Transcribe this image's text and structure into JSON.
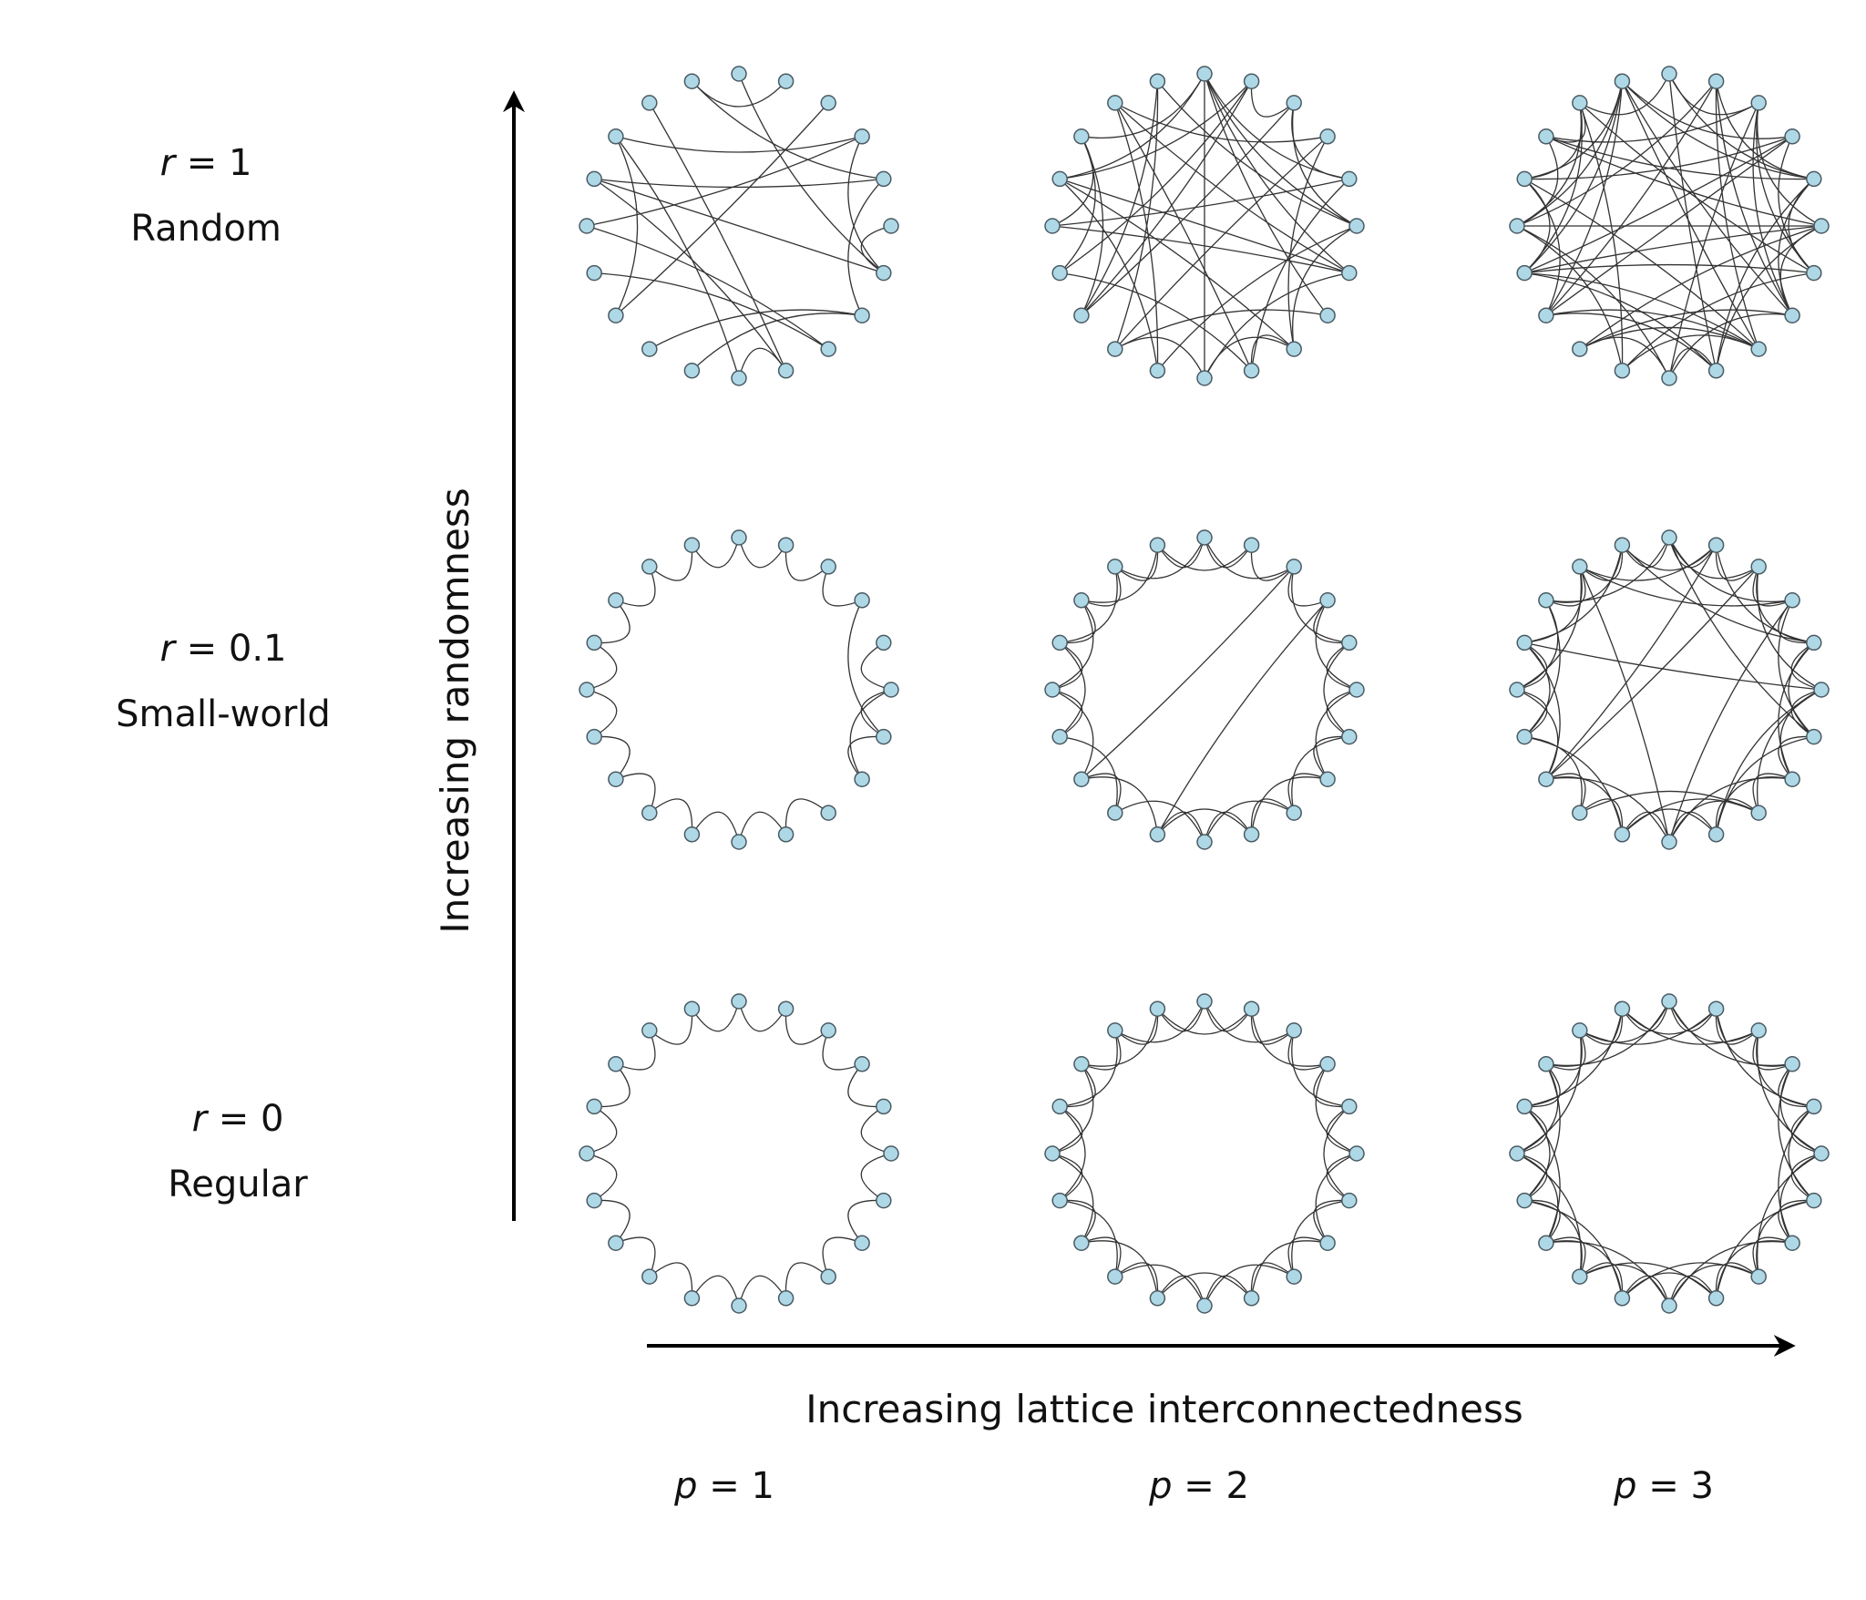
{
  "rows": [
    {
      "r_symbol": "r",
      "r_value": "1",
      "name": "Random",
      "rewire": 1.0
    },
    {
      "r_symbol": "r",
      "r_value": "0.1",
      "name": "Small-world",
      "rewire": 0.1
    },
    {
      "r_symbol": "r",
      "r_value": "0",
      "name": "Regular",
      "rewire": 0.0
    }
  ],
  "columns": [
    {
      "p_symbol": "p",
      "p_value": "1",
      "neighbors": 1
    },
    {
      "p_symbol": "p",
      "p_value": "2",
      "neighbors": 2
    },
    {
      "p_symbol": "p",
      "p_value": "3",
      "neighbors": 3
    }
  ],
  "graph": {
    "node_count": 20
  },
  "y_axis": {
    "label": "Increasing randomness"
  },
  "x_axis": {
    "label": "Increasing lattice interconnectedness"
  },
  "colors": {
    "node_fill": "#aed8e6",
    "node_stroke": "#4a5a63",
    "edge": "#333333",
    "axis": "#000000"
  }
}
